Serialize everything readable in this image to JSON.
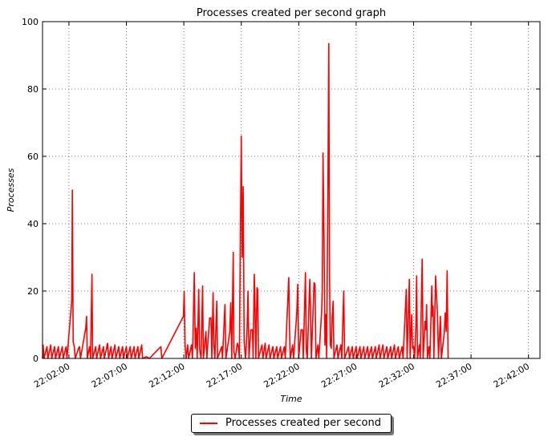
{
  "chart_data": {
    "type": "line",
    "title": "Processes created per second graph",
    "xlabel": "Time",
    "ylabel": "Processes",
    "ylim": [
      0,
      100
    ],
    "yticks": [
      0,
      20,
      40,
      60,
      80,
      100
    ],
    "xlim": [
      "21:59:42",
      "22:43:00"
    ],
    "xticks": [
      "22:02:00",
      "22:07:00",
      "22:12:00",
      "22:17:00",
      "22:22:00",
      "22:27:00",
      "22:32:00",
      "22:37:00",
      "22:42:00"
    ],
    "grid": true,
    "legend_position": "bottom-center",
    "series": [
      {
        "name": "Processes created per second",
        "color": "#ff0000",
        "points": [
          [
            "21:59:42",
            0
          ],
          [
            "21:59:45",
            4
          ],
          [
            "21:59:50",
            0
          ],
          [
            "22:00:05",
            3.5
          ],
          [
            "22:00:10",
            0
          ],
          [
            "22:00:25",
            4
          ],
          [
            "22:00:30",
            0
          ],
          [
            "22:00:45",
            3.5
          ],
          [
            "22:00:50",
            0
          ],
          [
            "22:01:05",
            3.5
          ],
          [
            "22:01:10",
            0
          ],
          [
            "22:01:25",
            3.5
          ],
          [
            "22:01:30",
            0
          ],
          [
            "22:01:45",
            3.5
          ],
          [
            "22:01:50",
            0
          ],
          [
            "22:02:15",
            17.5
          ],
          [
            "22:02:18",
            50
          ],
          [
            "22:02:22",
            5
          ],
          [
            "22:02:28",
            3.5
          ],
          [
            "22:02:33",
            0
          ],
          [
            "22:02:50",
            3
          ],
          [
            "22:02:55",
            3.5
          ],
          [
            "22:03:00",
            0
          ],
          [
            "22:03:28",
            9
          ],
          [
            "22:03:32",
            12.5
          ],
          [
            "22:03:36",
            0
          ],
          [
            "22:03:48",
            3.5
          ],
          [
            "22:03:53",
            0
          ],
          [
            "22:04:00",
            25
          ],
          [
            "22:04:04",
            0
          ],
          [
            "22:04:20",
            3.5
          ],
          [
            "22:04:25",
            0
          ],
          [
            "22:04:40",
            4
          ],
          [
            "22:04:45",
            0
          ],
          [
            "22:05:00",
            3.5
          ],
          [
            "22:05:05",
            0
          ],
          [
            "22:05:22",
            4.5
          ],
          [
            "22:05:27",
            0
          ],
          [
            "22:05:40",
            3.5
          ],
          [
            "22:05:45",
            0
          ],
          [
            "22:06:00",
            4
          ],
          [
            "22:06:05",
            0
          ],
          [
            "22:06:20",
            3.5
          ],
          [
            "22:06:25",
            0
          ],
          [
            "22:06:40",
            3.5
          ],
          [
            "22:06:45",
            0
          ],
          [
            "22:07:00",
            3.5
          ],
          [
            "22:07:05",
            0
          ],
          [
            "22:07:20",
            3.5
          ],
          [
            "22:07:25",
            0
          ],
          [
            "22:07:40",
            3.5
          ],
          [
            "22:07:45",
            0
          ],
          [
            "22:08:00",
            3.5
          ],
          [
            "22:08:05",
            0
          ],
          [
            "22:08:20",
            4
          ],
          [
            "22:08:25",
            0
          ],
          [
            "22:08:45",
            0.5
          ],
          [
            "22:09:00",
            0
          ],
          [
            "22:10:00",
            3.5
          ],
          [
            "22:10:05",
            0
          ],
          [
            "22:11:58",
            12.5
          ],
          [
            "22:12:02",
            20
          ],
          [
            "22:12:06",
            4
          ],
          [
            "22:12:12",
            0
          ],
          [
            "22:12:20",
            4
          ],
          [
            "22:12:25",
            0
          ],
          [
            "22:12:40",
            4
          ],
          [
            "22:12:45",
            0
          ],
          [
            "22:12:55",
            25.5
          ],
          [
            "22:13:00",
            3
          ],
          [
            "22:13:05",
            9
          ],
          [
            "22:13:10",
            0
          ],
          [
            "22:13:18",
            20.5
          ],
          [
            "22:13:22",
            3
          ],
          [
            "22:13:30",
            0
          ],
          [
            "22:13:38",
            21.5
          ],
          [
            "22:13:42",
            0
          ],
          [
            "22:13:55",
            8
          ],
          [
            "22:14:00",
            0
          ],
          [
            "22:14:15",
            12
          ],
          [
            "22:14:22",
            12
          ],
          [
            "22:14:26",
            0
          ],
          [
            "22:14:33",
            19.5
          ],
          [
            "22:14:37",
            4
          ],
          [
            "22:14:42",
            0
          ],
          [
            "22:14:52",
            17
          ],
          [
            "22:14:56",
            0
          ],
          [
            "22:15:18",
            3.5
          ],
          [
            "22:15:22",
            0
          ],
          [
            "22:15:35",
            16
          ],
          [
            "22:15:40",
            0
          ],
          [
            "22:16:00",
            8
          ],
          [
            "22:16:05",
            16.5
          ],
          [
            "22:16:10",
            0
          ],
          [
            "22:16:18",
            31.5
          ],
          [
            "22:16:22",
            2
          ],
          [
            "22:16:28",
            0
          ],
          [
            "22:16:40",
            4.5
          ],
          [
            "22:16:45",
            3.5
          ],
          [
            "22:16:50",
            0
          ],
          [
            "22:17:00",
            66
          ],
          [
            "22:17:05",
            30
          ],
          [
            "22:17:10",
            51
          ],
          [
            "22:17:15",
            5
          ],
          [
            "22:17:22",
            0
          ],
          [
            "22:17:30",
            8
          ],
          [
            "22:17:35",
            20
          ],
          [
            "22:17:40",
            0
          ],
          [
            "22:17:50",
            8.5
          ],
          [
            "22:17:58",
            8.5
          ],
          [
            "22:18:02",
            0
          ],
          [
            "22:18:08",
            25
          ],
          [
            "22:18:12",
            14
          ],
          [
            "22:18:16",
            0
          ],
          [
            "22:18:22",
            21
          ],
          [
            "22:18:26",
            20.5
          ],
          [
            "22:18:30",
            0
          ],
          [
            "22:18:48",
            4
          ],
          [
            "22:18:53",
            0
          ],
          [
            "22:19:05",
            4.5
          ],
          [
            "22:19:10",
            0
          ],
          [
            "22:19:25",
            4
          ],
          [
            "22:19:30",
            0
          ],
          [
            "22:19:45",
            3.5
          ],
          [
            "22:19:50",
            0
          ],
          [
            "22:20:05",
            3.5
          ],
          [
            "22:20:10",
            0
          ],
          [
            "22:20:25",
            3.5
          ],
          [
            "22:20:30",
            0
          ],
          [
            "22:20:45",
            3.5
          ],
          [
            "22:20:50",
            0
          ],
          [
            "22:21:08",
            24
          ],
          [
            "22:21:12",
            8
          ],
          [
            "22:21:16",
            0
          ],
          [
            "22:21:28",
            4
          ],
          [
            "22:21:33",
            0
          ],
          [
            "22:21:50",
            13.5
          ],
          [
            "22:21:55",
            22
          ],
          [
            "22:22:00",
            0
          ],
          [
            "22:22:12",
            8.5
          ],
          [
            "22:22:20",
            8.5
          ],
          [
            "22:22:24",
            0
          ],
          [
            "22:22:35",
            25.5
          ],
          [
            "22:22:40",
            2
          ],
          [
            "22:22:45",
            0
          ],
          [
            "22:22:58",
            23.5
          ],
          [
            "22:23:02",
            13.5
          ],
          [
            "22:23:06",
            0
          ],
          [
            "22:23:20",
            22.5
          ],
          [
            "22:23:25",
            22
          ],
          [
            "22:23:30",
            0
          ],
          [
            "22:23:40",
            4
          ],
          [
            "22:23:45",
            0
          ],
          [
            "22:24:00",
            14
          ],
          [
            "22:24:03",
            20.5
          ],
          [
            "22:24:07",
            61
          ],
          [
            "22:24:12",
            37
          ],
          [
            "22:24:17",
            4
          ],
          [
            "22:24:22",
            13
          ],
          [
            "22:24:26",
            0
          ],
          [
            "22:24:33",
            54
          ],
          [
            "22:24:37",
            93.5
          ],
          [
            "22:24:41",
            25
          ],
          [
            "22:24:45",
            4
          ],
          [
            "22:24:50",
            3
          ],
          [
            "22:24:55",
            13
          ],
          [
            "22:25:00",
            17
          ],
          [
            "22:25:04",
            0
          ],
          [
            "22:25:20",
            4
          ],
          [
            "22:25:25",
            0
          ],
          [
            "22:25:40",
            4
          ],
          [
            "22:25:45",
            0
          ],
          [
            "22:25:55",
            20
          ],
          [
            "22:26:00",
            0
          ],
          [
            "22:26:20",
            3.5
          ],
          [
            "22:26:25",
            0
          ],
          [
            "22:26:40",
            3.5
          ],
          [
            "22:26:45",
            0
          ],
          [
            "22:27:00",
            3.5
          ],
          [
            "22:27:05",
            0
          ],
          [
            "22:27:20",
            3.5
          ],
          [
            "22:27:25",
            0
          ],
          [
            "22:27:40",
            3.5
          ],
          [
            "22:27:45",
            0
          ],
          [
            "22:28:00",
            3.5
          ],
          [
            "22:28:05",
            0
          ],
          [
            "22:28:20",
            3.5
          ],
          [
            "22:28:25",
            0
          ],
          [
            "22:28:40",
            3.5
          ],
          [
            "22:28:45",
            0
          ],
          [
            "22:29:00",
            4
          ],
          [
            "22:29:05",
            0
          ],
          [
            "22:29:20",
            4
          ],
          [
            "22:29:25",
            0
          ],
          [
            "22:29:40",
            3.5
          ],
          [
            "22:29:45",
            0
          ],
          [
            "22:30:00",
            3.5
          ],
          [
            "22:30:05",
            0
          ],
          [
            "22:30:20",
            4
          ],
          [
            "22:30:25",
            0
          ],
          [
            "22:30:40",
            3.5
          ],
          [
            "22:30:45",
            0
          ],
          [
            "22:31:00",
            3.5
          ],
          [
            "22:31:05",
            0
          ],
          [
            "22:31:22",
            20.5
          ],
          [
            "22:31:26",
            0
          ],
          [
            "22:31:38",
            23.5
          ],
          [
            "22:31:42",
            0
          ],
          [
            "22:31:50",
            13
          ],
          [
            "22:31:55",
            3
          ],
          [
            "22:32:00",
            3.5
          ],
          [
            "22:32:05",
            0
          ],
          [
            "22:32:12",
            10
          ],
          [
            "22:32:16",
            24.5
          ],
          [
            "22:32:20",
            0
          ],
          [
            "22:32:30",
            4
          ],
          [
            "22:32:35",
            0
          ],
          [
            "22:32:45",
            29.5
          ],
          [
            "22:32:50",
            0
          ],
          [
            "22:33:00",
            11
          ],
          [
            "22:33:04",
            8.5
          ],
          [
            "22:33:08",
            16
          ],
          [
            "22:33:12",
            0
          ],
          [
            "22:33:20",
            3.5
          ],
          [
            "22:33:25",
            0
          ],
          [
            "22:33:35",
            21.5
          ],
          [
            "22:33:38",
            12.5
          ],
          [
            "22:33:42",
            15.5
          ],
          [
            "22:33:46",
            0
          ],
          [
            "22:33:55",
            24.5
          ],
          [
            "22:34:00",
            18.5
          ],
          [
            "22:34:05",
            13
          ],
          [
            "22:34:10",
            0
          ],
          [
            "22:34:20",
            12.5
          ],
          [
            "22:34:25",
            0
          ],
          [
            "22:34:40",
            7.5
          ],
          [
            "22:34:45",
            13.5
          ],
          [
            "22:34:50",
            8
          ],
          [
            "22:34:55",
            26
          ],
          [
            "22:35:00",
            0
          ]
        ]
      }
    ]
  }
}
